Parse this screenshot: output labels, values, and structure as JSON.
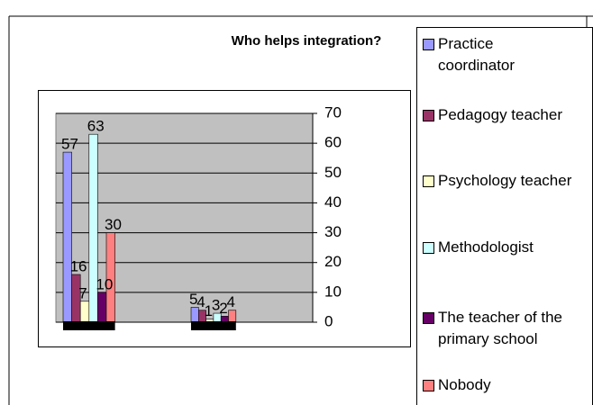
{
  "chart_data": {
    "type": "bar",
    "title": "Who helps integration?",
    "categories": [
      null,
      null
    ],
    "series": [
      {
        "name": "Practice coordinator",
        "color": "#9999ff",
        "values": [
          57,
          5
        ]
      },
      {
        "name": "Pedagogy teacher",
        "color": "#993366",
        "values": [
          16,
          4
        ]
      },
      {
        "name": "Psychology teacher",
        "color": "#ffffcc",
        "values": [
          7,
          1
        ]
      },
      {
        "name": "Methodologist",
        "color": "#ccffff",
        "values": [
          63,
          3
        ]
      },
      {
        "name": "The teacher of the primary school",
        "color": "#660066",
        "values": [
          10,
          2
        ]
      },
      {
        "name": "Nobody",
        "color": "#ff8080",
        "values": [
          30,
          4
        ]
      }
    ],
    "ylim": [
      0,
      70
    ],
    "yticks": [
      0,
      10,
      20,
      30,
      40,
      50,
      60,
      70
    ],
    "grid": true,
    "legend": "right"
  }
}
